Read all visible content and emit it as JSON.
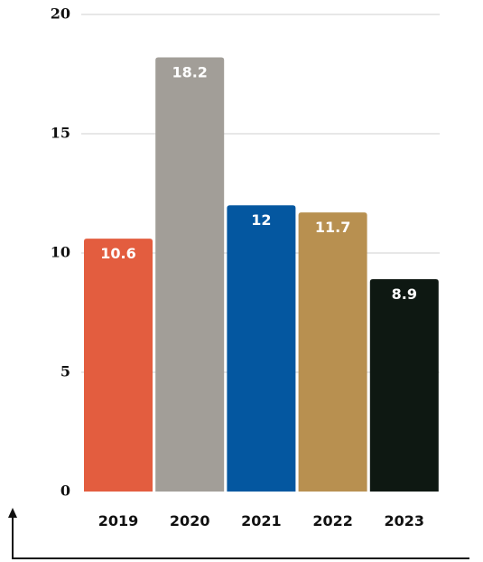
{
  "chart_data": {
    "type": "bar",
    "categories": [
      "2019",
      "2020",
      "2021",
      "2022",
      "2023"
    ],
    "values": [
      10.6,
      18.2,
      12,
      11.7,
      8.9
    ],
    "data_labels": [
      "10.6",
      "18.2",
      "12",
      "11.7",
      "8.9"
    ],
    "colors": [
      "#e35d3f",
      "#a29e98",
      "#0457a0",
      "#b89050",
      "#0e1812"
    ],
    "ylim": [
      0,
      20
    ],
    "yticks": [
      0,
      5,
      10,
      15,
      20
    ],
    "grid": true,
    "title": "",
    "xlabel": "",
    "ylabel": ""
  }
}
